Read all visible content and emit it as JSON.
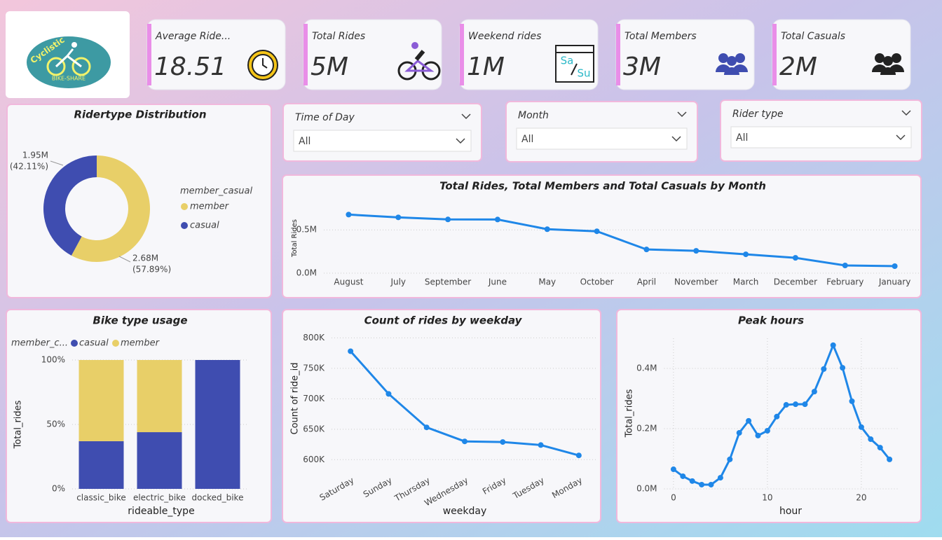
{
  "logo": {
    "name": "Cyclistic",
    "tagline": "BIKE-SHARE"
  },
  "kpis": [
    {
      "label": "Average Ride...",
      "value": "18.51"
    },
    {
      "label": "Total Rides",
      "value": "5M"
    },
    {
      "label": "Weekend rides",
      "value": "1M",
      "icon_text": [
        "Sa",
        "Su"
      ]
    },
    {
      "label": "Total Members",
      "value": "3M"
    },
    {
      "label": "Total Casuals",
      "value": "2M"
    }
  ],
  "slicers": [
    {
      "label": "Time of Day",
      "value": "All"
    },
    {
      "label": "Month",
      "value": "All"
    },
    {
      "label": "Rider type",
      "value": "All"
    }
  ],
  "chart_data": [
    {
      "type": "pie",
      "title": "Ridertype Distribution",
      "legend_title": "member_casual",
      "categories": [
        "member",
        "casual"
      ],
      "values": [
        2680000,
        1950000
      ],
      "value_labels": [
        "2.68M",
        "1.95M"
      ],
      "percents": [
        57.89,
        42.11
      ],
      "percent_labels": [
        "(57.89%)",
        "(42.11%)"
      ],
      "colors": [
        "#e8cf68",
        "#3f4db0"
      ],
      "donut": true
    },
    {
      "type": "line",
      "title": "Total Rides, Total Members and Total Casuals by Month",
      "ylabel": "Total Rides",
      "categories": [
        "August",
        "July",
        "September",
        "June",
        "May",
        "October",
        "April",
        "November",
        "March",
        "December",
        "February",
        "January"
      ],
      "values": [
        677000,
        645000,
        621000,
        620000,
        508000,
        484000,
        274000,
        258000,
        218000,
        177000,
        89000,
        81000
      ],
      "color": "#1f87e8",
      "ylim": [
        0,
        850000
      ],
      "yticks": [
        {
          "value": 0,
          "label": "0.0M"
        },
        {
          "value": 500000,
          "label": "0.5M"
        }
      ],
      "grid": true
    },
    {
      "type": "bar",
      "stacked": true,
      "title": "Bike type usage",
      "legend_title": "member_c...",
      "xlabel": "rideable_type",
      "ylabel": "Total_rides",
      "categories": [
        "classic_bike",
        "electric_bike",
        "docked_bike"
      ],
      "series": [
        {
          "name": "casual",
          "color": "#3f4db0",
          "values": [
            37,
            44,
            100
          ]
        },
        {
          "name": "member",
          "color": "#e8cf68",
          "values": [
            63,
            56,
            0
          ]
        }
      ],
      "ylim": [
        0,
        100
      ],
      "yticks": [
        {
          "value": 0,
          "label": "0%"
        },
        {
          "value": 50,
          "label": "50%"
        },
        {
          "value": 100,
          "label": "100%"
        }
      ],
      "grid": true
    },
    {
      "type": "line",
      "title": "Count of rides by weekday",
      "xlabel": "weekday",
      "ylabel": "Count of ride_id",
      "categories": [
        "Saturday",
        "Sunday",
        "Thursday",
        "Wednesday",
        "Friday",
        "Tuesday",
        "Monday"
      ],
      "values": [
        778000,
        708000,
        653000,
        630000,
        629000,
        624000,
        607000
      ],
      "color": "#1f87e8",
      "ylim": [
        590000,
        805000
      ],
      "yticks": [
        {
          "value": 600000,
          "label": "600K"
        },
        {
          "value": 650000,
          "label": "650K"
        },
        {
          "value": 700000,
          "label": "700K"
        },
        {
          "value": 750000,
          "label": "750K"
        },
        {
          "value": 800000,
          "label": "800K"
        }
      ],
      "grid": true
    },
    {
      "type": "line",
      "title": "Peak hours",
      "xlabel": "hour",
      "ylabel": "Total_rides",
      "x": [
        0,
        1,
        2,
        3,
        4,
        5,
        6,
        7,
        8,
        9,
        10,
        11,
        12,
        13,
        14,
        15,
        16,
        17,
        18,
        19,
        20,
        21,
        22,
        23
      ],
      "values": [
        65000,
        42000,
        26000,
        14000,
        14000,
        37000,
        98000,
        186000,
        226000,
        177000,
        193000,
        240000,
        279000,
        281000,
        281000,
        323000,
        398000,
        477000,
        402000,
        291000,
        205000,
        165000,
        137000,
        98000
      ],
      "color": "#1f87e8",
      "xlim": [
        -1,
        24
      ],
      "xticks": [
        0,
        10,
        20
      ],
      "ylim": [
        0,
        500000
      ],
      "yticks": [
        {
          "value": 0,
          "label": "0.0M"
        },
        {
          "value": 200000,
          "label": "0.2M"
        },
        {
          "value": 400000,
          "label": "0.4M"
        }
      ],
      "grid": true
    }
  ]
}
